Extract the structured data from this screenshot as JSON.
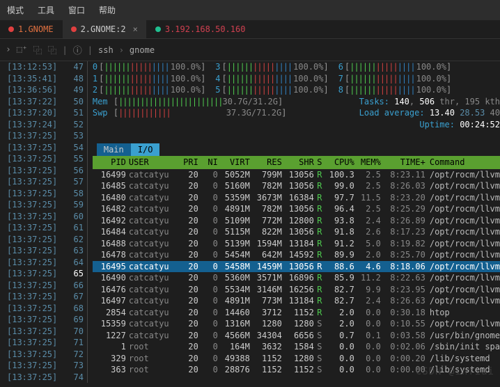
{
  "menu": [
    "模式",
    "工具",
    "窗口",
    "帮助"
  ],
  "tabs": [
    {
      "dot": "#e04040",
      "label": "1.GNOME",
      "color": "#e07040",
      "active": false,
      "closable": false
    },
    {
      "dot": "#e04040",
      "label": "2.GNOME:2",
      "color": "#ccc",
      "active": true,
      "closable": true
    },
    {
      "dot": "#20c090",
      "label": "3.192.168.50.160",
      "color": "#d04050",
      "active": false,
      "closable": false
    }
  ],
  "breadcrumb": [
    "ssh",
    "gnome"
  ],
  "gutter": [
    {
      "ts": "13:12:53",
      "ln": "47"
    },
    {
      "ts": "13:35:41",
      "ln": "48"
    },
    {
      "ts": "13:36:56",
      "ln": "49"
    },
    {
      "ts": "13:37:22",
      "ln": "50"
    },
    {
      "ts": "13:37:20",
      "ln": "51"
    },
    {
      "ts": "13:37:24",
      "ln": "52"
    },
    {
      "ts": "13:37:25",
      "ln": "53"
    },
    {
      "ts": "13:37:25",
      "ln": "54"
    },
    {
      "ts": "13:37:25",
      "ln": "55"
    },
    {
      "ts": "13:37:25",
      "ln": "56"
    },
    {
      "ts": "13:37:25",
      "ln": "57"
    },
    {
      "ts": "13:37:25",
      "ln": "58"
    },
    {
      "ts": "13:37:25",
      "ln": "59"
    },
    {
      "ts": "13:37:25",
      "ln": "60"
    },
    {
      "ts": "13:37:25",
      "ln": "61"
    },
    {
      "ts": "13:37:25",
      "ln": "62"
    },
    {
      "ts": "13:37:25",
      "ln": "63"
    },
    {
      "ts": "13:37:25",
      "ln": "64"
    },
    {
      "ts": "13:37:25",
      "ln": "65",
      "cur": true
    },
    {
      "ts": "13:37:25",
      "ln": "66"
    },
    {
      "ts": "13:37:25",
      "ln": "67"
    },
    {
      "ts": "13:37:25",
      "ln": "68"
    },
    {
      "ts": "13:37:25",
      "ln": "69"
    },
    {
      "ts": "13:37:25",
      "ln": "70"
    },
    {
      "ts": "13:37:25",
      "ln": "71"
    },
    {
      "ts": "13:37:25",
      "ln": "72"
    },
    {
      "ts": "13:37:25",
      "ln": "73"
    },
    {
      "ts": "13:37:25",
      "ln": "74"
    }
  ],
  "cpus": [
    [
      {
        "id": "0",
        "pct": "100.0%"
      },
      {
        "id": "3",
        "pct": "100.0%"
      },
      {
        "id": "6",
        "pct": "100.0%"
      }
    ],
    [
      {
        "id": "1",
        "pct": "100.0%"
      },
      {
        "id": "4",
        "pct": "100.0%"
      },
      {
        "id": "7",
        "pct": "100.0%"
      }
    ],
    [
      {
        "id": "2",
        "pct": "100.0%"
      },
      {
        "id": "5",
        "pct": "100.0%"
      },
      {
        "id": "8",
        "pct": "100.0%"
      }
    ]
  ],
  "mem": {
    "label": "Mem",
    "val": "30.7G/31.2G"
  },
  "swp": {
    "label": "Swp",
    "val": "37.3G/71.2G"
  },
  "info": {
    "tasks": "Tasks: ",
    "t1": "140",
    "t2": ", ",
    "t3": "506",
    "t4": " thr, ",
    "t5": "195 kth",
    "load": "Load average: ",
    "l1": "13.40",
    "l2": "28.53",
    "l3": "40",
    "uptime": "Uptime: ",
    "u1": "00:24:52"
  },
  "tabnames": [
    "Main",
    "I/O"
  ],
  "cols": [
    "PID",
    "USER",
    "PRI",
    "NI",
    "VIRT",
    "RES",
    "SHR",
    "S",
    "CPU%",
    "MEM%",
    "TIME+",
    "Command"
  ],
  "rows": [
    {
      "pid": "16499",
      "usr": "catcatyu",
      "pri": "20",
      "ni": "0",
      "vir": "5052M",
      "res": "799M",
      "shr": "13056",
      "s": "R",
      "cpu": "100.3",
      "mem": "2.5",
      "tim": "8:23.11",
      "cmd": "/opt/rocm/llvm"
    },
    {
      "pid": "16485",
      "usr": "catcatyu",
      "pri": "20",
      "ni": "0",
      "vir": "5160M",
      "res": "782M",
      "shr": "13056",
      "s": "R",
      "cpu": "99.0",
      "mem": "2.5",
      "tim": "8:26.03",
      "cmd": "/opt/rocm/llvm"
    },
    {
      "pid": "16480",
      "usr": "catcatyu",
      "pri": "20",
      "ni": "0",
      "vir": "5359M",
      "res": "3673M",
      "shr": "16384",
      "s": "R",
      "cpu": "97.7",
      "mem": "11.5",
      "tim": "8:23.20",
      "cmd": "/opt/rocm/llvm"
    },
    {
      "pid": "16482",
      "usr": "catcatyu",
      "pri": "20",
      "ni": "0",
      "vir": "4891M",
      "res": "782M",
      "shr": "13056",
      "s": "R",
      "cpu": "96.4",
      "mem": "2.5",
      "tim": "8:25.29",
      "cmd": "/opt/rocm/llvm"
    },
    {
      "pid": "16492",
      "usr": "catcatyu",
      "pri": "20",
      "ni": "0",
      "vir": "5109M",
      "res": "772M",
      "shr": "12800",
      "s": "R",
      "cpu": "93.8",
      "mem": "2.4",
      "tim": "8:26.89",
      "cmd": "/opt/rocm/llvm"
    },
    {
      "pid": "16484",
      "usr": "catcatyu",
      "pri": "20",
      "ni": "0",
      "vir": "5115M",
      "res": "822M",
      "shr": "13056",
      "s": "R",
      "cpu": "91.8",
      "mem": "2.6",
      "tim": "8:17.23",
      "cmd": "/opt/rocm/llvm"
    },
    {
      "pid": "16488",
      "usr": "catcatyu",
      "pri": "20",
      "ni": "0",
      "vir": "5139M",
      "res": "1594M",
      "shr": "13184",
      "s": "R",
      "cpu": "91.2",
      "mem": "5.0",
      "tim": "8:19.82",
      "cmd": "/opt/rocm/llvm"
    },
    {
      "pid": "16478",
      "usr": "catcatyu",
      "pri": "20",
      "ni": "0",
      "vir": "5454M",
      "res": "642M",
      "shr": "14592",
      "s": "R",
      "cpu": "89.9",
      "mem": "2.0",
      "tim": "8:25.70",
      "cmd": "/opt/rocm/llvm"
    },
    {
      "pid": "16495",
      "usr": "catcatyu",
      "pri": "20",
      "ni": "0",
      "vir": "5458M",
      "res": "1459M",
      "shr": "13056",
      "s": "R",
      "cpu": "88.6",
      "mem": "4.6",
      "tim": "8:18.06",
      "cmd": "/opt/rocm/llvm",
      "sel": true
    },
    {
      "pid": "16490",
      "usr": "catcatyu",
      "pri": "20",
      "ni": "0",
      "vir": "5360M",
      "res": "3571M",
      "shr": "16896",
      "s": "R",
      "cpu": "85.9",
      "mem": "11.2",
      "tim": "8:22.63",
      "cmd": "/opt/rocm/llvm"
    },
    {
      "pid": "16476",
      "usr": "catcatyu",
      "pri": "20",
      "ni": "0",
      "vir": "5534M",
      "res": "3146M",
      "shr": "16256",
      "s": "R",
      "cpu": "82.7",
      "mem": "9.9",
      "tim": "8:23.95",
      "cmd": "/opt/rocm/llvm"
    },
    {
      "pid": "16497",
      "usr": "catcatyu",
      "pri": "20",
      "ni": "0",
      "vir": "4891M",
      "res": "773M",
      "shr": "13184",
      "s": "R",
      "cpu": "82.7",
      "mem": "2.4",
      "tim": "8:26.63",
      "cmd": "/opt/rocm/llvm"
    },
    {
      "pid": "2854",
      "usr": "catcatyu",
      "pri": "20",
      "ni": "0",
      "vir": "14460",
      "res": "3712",
      "shr": "1152",
      "s": "R",
      "cpu": "2.0",
      "mem": "0.0",
      "tim": "0:30.18",
      "cmd": "htop"
    },
    {
      "pid": "15359",
      "usr": "catcatyu",
      "pri": "20",
      "ni": "0",
      "vir": "1316M",
      "res": "1280",
      "shr": "1280",
      "s": "S",
      "cpu": "2.0",
      "mem": "0.0",
      "tim": "0:10.55",
      "cmd": "/opt/rocm/llvm"
    },
    {
      "pid": "1227",
      "usr": "catcatyu",
      "pri": "20",
      "ni": "0",
      "vir": "4566M",
      "res": "34304",
      "shr": "6656",
      "s": "S",
      "cpu": "0.7",
      "mem": "0.1",
      "tim": "0:03.58",
      "cmd": "/usr/bin/gnome"
    },
    {
      "pid": "1",
      "usr": "root",
      "pri": "20",
      "ni": "0",
      "vir": "164M",
      "res": "3632",
      "shr": "1584",
      "s": "S",
      "cpu": "0.0",
      "mem": "0.0",
      "tim": "0:02.06",
      "cmd": "/sbin/init spa"
    },
    {
      "pid": "329",
      "usr": "root",
      "pri": "20",
      "ni": "0",
      "vir": "49388",
      "res": "1152",
      "shr": "1280",
      "s": "S",
      "cpu": "0.0",
      "mem": "0.0",
      "tim": "0:00.20",
      "cmd": "/lib/systemd"
    },
    {
      "pid": "363",
      "usr": "root",
      "pri": "20",
      "ni": "0",
      "vir": "28876",
      "res": "1152",
      "shr": "1152",
      "s": "S",
      "cpu": "0.0",
      "mem": "0.0",
      "tim": "0:00.00",
      "cmd": "/lib/systemd"
    }
  ],
  "watermark": "CSDN @infiai"
}
